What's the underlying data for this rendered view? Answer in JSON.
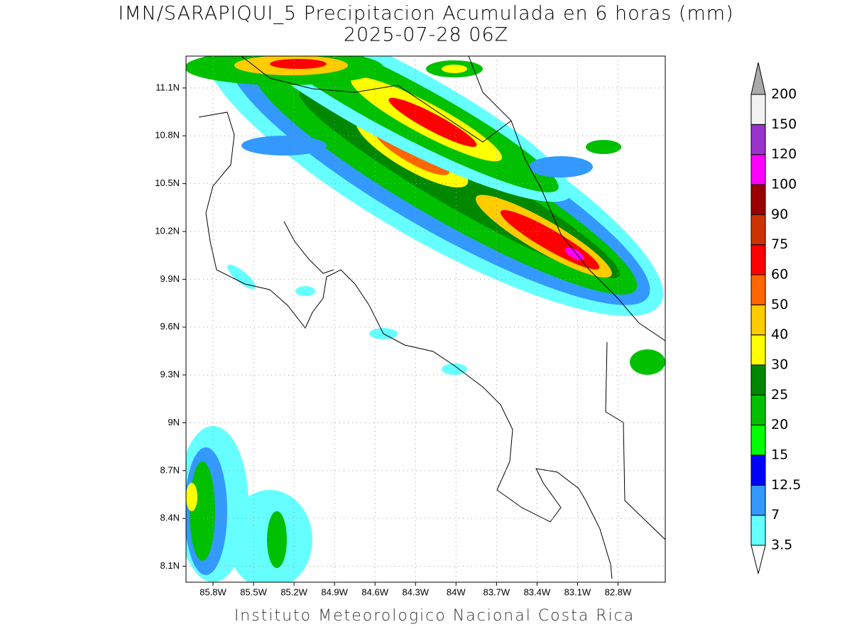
{
  "title": "IMN/SARAPIQUI_5 Precipitacion Acumulada en 6 horas (mm)",
  "subtitle": "2025-07-28 06Z",
  "footer": "Instituto Meteorologico Nacional Costa Rica",
  "map": {
    "latlim": [
      8.0,
      11.3
    ],
    "lonlim": [
      -86.0,
      -82.45
    ],
    "grid": true,
    "lat_ticks": [
      {
        "value": 8.1,
        "label": "8.1N"
      },
      {
        "value": 8.4,
        "label": "8.4N"
      },
      {
        "value": 8.7,
        "label": "8.7N"
      },
      {
        "value": 9.0,
        "label": "9N"
      },
      {
        "value": 9.3,
        "label": "9.3N"
      },
      {
        "value": 9.6,
        "label": "9.6N"
      },
      {
        "value": 9.9,
        "label": "9.9N"
      },
      {
        "value": 10.2,
        "label": "10.2N"
      },
      {
        "value": 10.5,
        "label": "10.5N"
      },
      {
        "value": 10.8,
        "label": "10.8N"
      },
      {
        "value": 11.1,
        "label": "11.1N"
      }
    ],
    "lon_ticks": [
      {
        "value": -85.8,
        "label": "85.8W"
      },
      {
        "value": -85.5,
        "label": "85.5W"
      },
      {
        "value": -85.2,
        "label": "85.2W"
      },
      {
        "value": -84.9,
        "label": "84.9W"
      },
      {
        "value": -84.6,
        "label": "84.6W"
      },
      {
        "value": -84.3,
        "label": "84.3W"
      },
      {
        "value": -84.0,
        "label": "84W"
      },
      {
        "value": -83.7,
        "label": "83.7W"
      },
      {
        "value": -83.4,
        "label": "83.4W"
      },
      {
        "value": -83.1,
        "label": "83.1W"
      },
      {
        "value": -82.8,
        "label": "82.8W"
      }
    ]
  },
  "colorbar": {
    "levels": [
      3.5,
      7,
      12.5,
      15,
      20,
      25,
      30,
      40,
      50,
      60,
      75,
      90,
      100,
      120,
      150,
      200
    ],
    "colors": [
      "#66ffff",
      "#3399ff",
      "#0000ff",
      "#00ff00",
      "#00c000",
      "#008800",
      "#ffff00",
      "#ffcc00",
      "#ff6600",
      "#ff0000",
      "#cc3300",
      "#990000",
      "#ff00ff",
      "#9933cc",
      "#f2f2f2"
    ],
    "under_color": "#ffffff",
    "over_color": "#aaaaaa"
  }
}
